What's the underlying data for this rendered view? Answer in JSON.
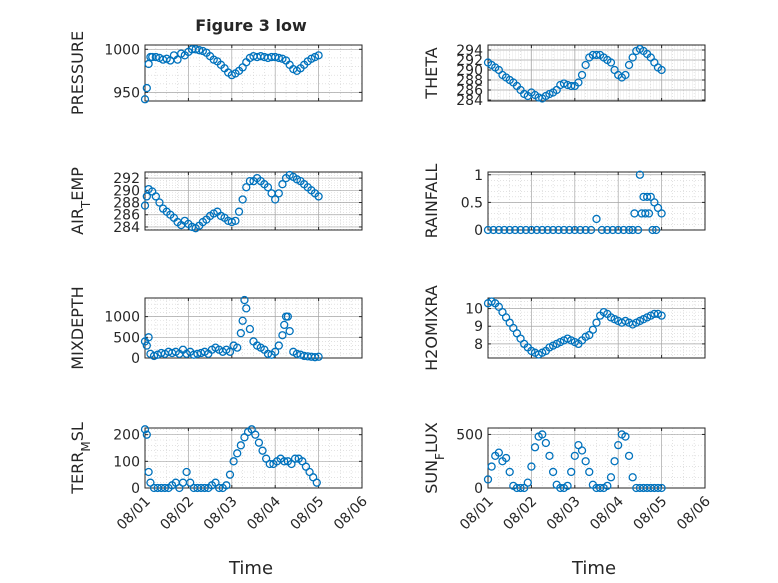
{
  "figure_title": "Figure 3 low",
  "colors": {
    "marker": "#0072BD",
    "axis": "#262626",
    "grid": "#a6a6a6",
    "frame": "#ffffff"
  },
  "chart_data": [
    {
      "type": "scatter",
      "ylabel": "PRESSURE",
      "title": "Figure 3 low",
      "ylim": [
        940,
        1005
      ],
      "yticks": [
        950,
        1000
      ],
      "grid": true,
      "x": [
        "2014-08-01 00:00",
        "2014-08-01 01:00",
        "2014-08-01 02:00",
        "2014-08-01 03:00",
        "2014-08-01 04:00",
        "2014-08-01 06:00",
        "2014-08-01 08:00",
        "2014-08-01 10:00",
        "2014-08-01 12:00",
        "2014-08-01 14:00",
        "2014-08-01 16:00",
        "2014-08-01 18:00",
        "2014-08-01 20:00",
        "2014-08-01 22:00",
        "2014-08-02 00:00",
        "2014-08-02 02:00",
        "2014-08-02 04:00",
        "2014-08-02 06:00",
        "2014-08-02 08:00",
        "2014-08-02 10:00",
        "2014-08-02 12:00",
        "2014-08-02 14:00",
        "2014-08-02 16:00",
        "2014-08-02 18:00",
        "2014-08-02 20:00",
        "2014-08-02 22:00",
        "2014-08-03 00:00",
        "2014-08-03 02:00",
        "2014-08-03 04:00",
        "2014-08-03 06:00",
        "2014-08-03 08:00",
        "2014-08-03 10:00",
        "2014-08-03 12:00",
        "2014-08-03 14:00",
        "2014-08-03 16:00",
        "2014-08-03 18:00",
        "2014-08-03 20:00",
        "2014-08-03 22:00",
        "2014-08-04 00:00",
        "2014-08-04 02:00",
        "2014-08-04 04:00",
        "2014-08-04 06:00",
        "2014-08-04 08:00",
        "2014-08-04 10:00",
        "2014-08-04 12:00",
        "2014-08-04 14:00",
        "2014-08-04 16:00",
        "2014-08-04 18:00",
        "2014-08-04 20:00",
        "2014-08-04 22:00",
        "2014-08-05 00:00"
      ],
      "y": [
        942,
        955,
        983,
        991,
        991,
        991,
        990,
        988,
        989,
        987,
        993,
        988,
        995,
        993,
        997,
        1000,
        1000,
        999,
        998,
        996,
        992,
        988,
        986,
        982,
        978,
        973,
        970,
        972,
        975,
        979,
        985,
        990,
        992,
        991,
        992,
        991,
        990,
        991,
        991,
        990,
        989,
        987,
        982,
        977,
        975,
        978,
        982,
        986,
        989,
        991,
        993
      ]
    },
    {
      "type": "scatter",
      "ylabel": "THETA",
      "ylim": [
        283.8,
        295
      ],
      "yticks": [
        284,
        286,
        288,
        290,
        292,
        294
      ],
      "grid": true,
      "x": [
        "2014-08-01 00:00",
        "2014-08-01 02:00",
        "2014-08-01 04:00",
        "2014-08-01 06:00",
        "2014-08-01 08:00",
        "2014-08-01 10:00",
        "2014-08-01 12:00",
        "2014-08-01 14:00",
        "2014-08-01 16:00",
        "2014-08-01 18:00",
        "2014-08-01 20:00",
        "2014-08-01 22:00",
        "2014-08-02 00:00",
        "2014-08-02 02:00",
        "2014-08-02 04:00",
        "2014-08-02 06:00",
        "2014-08-02 08:00",
        "2014-08-02 10:00",
        "2014-08-02 12:00",
        "2014-08-02 14:00",
        "2014-08-02 16:00",
        "2014-08-02 18:00",
        "2014-08-02 20:00",
        "2014-08-02 22:00",
        "2014-08-03 00:00",
        "2014-08-03 02:00",
        "2014-08-03 04:00",
        "2014-08-03 06:00",
        "2014-08-03 08:00",
        "2014-08-03 10:00",
        "2014-08-03 12:00",
        "2014-08-03 14:00",
        "2014-08-03 16:00",
        "2014-08-03 18:00",
        "2014-08-03 20:00",
        "2014-08-03 22:00",
        "2014-08-04 00:00",
        "2014-08-04 02:00",
        "2014-08-04 04:00",
        "2014-08-04 06:00",
        "2014-08-04 08:00",
        "2014-08-04 10:00",
        "2014-08-04 12:00",
        "2014-08-04 14:00",
        "2014-08-04 16:00",
        "2014-08-04 18:00",
        "2014-08-04 20:00",
        "2014-08-04 22:00",
        "2014-08-05 00:00"
      ],
      "y": [
        291.5,
        291,
        290.5,
        290,
        289,
        288.5,
        288,
        287.5,
        286.8,
        286,
        285.2,
        284.8,
        285.5,
        285,
        284.5,
        284.3,
        284.8,
        285.2,
        285.5,
        286,
        287,
        287.3,
        287,
        286.8,
        286.8,
        287.5,
        289,
        291,
        292.5,
        293,
        293,
        293,
        292.5,
        292,
        291.5,
        290,
        289,
        288.5,
        289,
        291,
        292.5,
        293.8,
        294.2,
        293.8,
        293.2,
        292.5,
        291.5,
        290.5,
        290
      ]
    },
    {
      "type": "scatter",
      "ylabel": "AIR_TEMP",
      "ylim": [
        283.5,
        293
      ],
      "yticks": [
        284,
        286,
        288,
        290,
        292
      ],
      "grid": true,
      "x": [
        "2014-08-01 00:00",
        "2014-08-01 01:00",
        "2014-08-01 02:00",
        "2014-08-01 04:00",
        "2014-08-01 06:00",
        "2014-08-01 08:00",
        "2014-08-01 10:00",
        "2014-08-01 12:00",
        "2014-08-01 14:00",
        "2014-08-01 16:00",
        "2014-08-01 18:00",
        "2014-08-01 20:00",
        "2014-08-01 22:00",
        "2014-08-02 00:00",
        "2014-08-02 02:00",
        "2014-08-02 04:00",
        "2014-08-02 06:00",
        "2014-08-02 08:00",
        "2014-08-02 10:00",
        "2014-08-02 12:00",
        "2014-08-02 14:00",
        "2014-08-02 16:00",
        "2014-08-02 18:00",
        "2014-08-02 20:00",
        "2014-08-02 22:00",
        "2014-08-03 00:00",
        "2014-08-03 02:00",
        "2014-08-03 04:00",
        "2014-08-03 06:00",
        "2014-08-03 08:00",
        "2014-08-03 10:00",
        "2014-08-03 12:00",
        "2014-08-03 14:00",
        "2014-08-03 16:00",
        "2014-08-03 18:00",
        "2014-08-03 20:00",
        "2014-08-03 22:00",
        "2014-08-04 00:00",
        "2014-08-04 02:00",
        "2014-08-04 04:00",
        "2014-08-04 06:00",
        "2014-08-04 08:00",
        "2014-08-04 10:00",
        "2014-08-04 12:00",
        "2014-08-04 14:00",
        "2014-08-04 16:00",
        "2014-08-04 18:00",
        "2014-08-04 20:00",
        "2014-08-04 22:00",
        "2014-08-05 00:00"
      ],
      "y": [
        287.5,
        289,
        290.2,
        289.8,
        289,
        288,
        287,
        286.5,
        286,
        285.5,
        284.8,
        284.3,
        285,
        284.5,
        284,
        283.8,
        284.2,
        284.8,
        285.2,
        285.8,
        286.2,
        286.5,
        285.8,
        285.5,
        285,
        284.8,
        285,
        286.5,
        288.5,
        290.5,
        291.5,
        291.5,
        292,
        291.5,
        291,
        290.5,
        289.5,
        288.5,
        289.5,
        291,
        292,
        292.5,
        292.2,
        291.8,
        291.5,
        291,
        290.5,
        290,
        289.5,
        289
      ]
    },
    {
      "type": "scatter",
      "ylabel": "RAINFALL",
      "ylim": [
        0,
        1.05
      ],
      "yticks": [
        0,
        0.5,
        1
      ],
      "ytick_labels": [
        "0",
        "0.5",
        "1"
      ],
      "grid": true,
      "x": [
        "2014-08-01 00:00",
        "2014-08-01 03:00",
        "2014-08-01 06:00",
        "2014-08-01 09:00",
        "2014-08-01 12:00",
        "2014-08-01 15:00",
        "2014-08-01 18:00",
        "2014-08-01 21:00",
        "2014-08-02 00:00",
        "2014-08-02 03:00",
        "2014-08-02 06:00",
        "2014-08-02 09:00",
        "2014-08-02 12:00",
        "2014-08-02 15:00",
        "2014-08-02 18:00",
        "2014-08-02 21:00",
        "2014-08-03 00:00",
        "2014-08-03 03:00",
        "2014-08-03 06:00",
        "2014-08-03 09:00",
        "2014-08-03 12:00",
        "2014-08-03 15:00",
        "2014-08-03 18:00",
        "2014-08-03 21:00",
        "2014-08-04 00:00",
        "2014-08-04 03:00",
        "2014-08-04 06:00",
        "2014-08-04 08:00",
        "2014-08-04 09:00",
        "2014-08-04 11:00",
        "2014-08-04 12:00",
        "2014-08-04 13:00",
        "2014-08-04 14:00",
        "2014-08-04 15:00",
        "2014-08-04 16:00",
        "2014-08-04 17:00",
        "2014-08-04 18:00",
        "2014-08-04 19:00",
        "2014-08-04 20:00",
        "2014-08-04 21:00",
        "2014-08-04 22:00",
        "2014-08-05 00:00"
      ],
      "y": [
        0,
        0,
        0,
        0,
        0,
        0,
        0,
        0,
        0,
        0,
        0,
        0,
        0,
        0,
        0,
        0,
        0,
        0,
        0,
        0,
        0.2,
        0,
        0,
        0,
        0,
        0,
        0,
        0,
        0.3,
        0,
        1,
        0.3,
        0.6,
        0.3,
        0.6,
        0.3,
        0.6,
        0,
        0.5,
        0,
        0.4,
        0.3
      ]
    },
    {
      "type": "scatter",
      "ylabel": "MIXDEPTH",
      "ylim": [
        0,
        1450
      ],
      "yticks": [
        0,
        500,
        1000
      ],
      "grid": true,
      "x": [
        "2014-08-01 00:00",
        "2014-08-01 01:00",
        "2014-08-01 02:00",
        "2014-08-01 03:00",
        "2014-08-01 05:00",
        "2014-08-01 07:00",
        "2014-08-01 09:00",
        "2014-08-01 11:00",
        "2014-08-01 13:00",
        "2014-08-01 15:00",
        "2014-08-01 17:00",
        "2014-08-01 19:00",
        "2014-08-01 21:00",
        "2014-08-01 23:00",
        "2014-08-02 01:00",
        "2014-08-02 03:00",
        "2014-08-02 05:00",
        "2014-08-02 07:00",
        "2014-08-02 09:00",
        "2014-08-02 11:00",
        "2014-08-02 13:00",
        "2014-08-02 15:00",
        "2014-08-02 17:00",
        "2014-08-02 19:00",
        "2014-08-02 21:00",
        "2014-08-02 23:00",
        "2014-08-03 01:00",
        "2014-08-03 03:00",
        "2014-08-03 05:00",
        "2014-08-03 06:00",
        "2014-08-03 07:00",
        "2014-08-03 08:00",
        "2014-08-03 10:00",
        "2014-08-03 12:00",
        "2014-08-03 14:00",
        "2014-08-03 16:00",
        "2014-08-03 18:00",
        "2014-08-03 20:00",
        "2014-08-03 22:00",
        "2014-08-04 00:00",
        "2014-08-04 02:00",
        "2014-08-04 04:00",
        "2014-08-04 05:00",
        "2014-08-04 06:00",
        "2014-08-04 07:00",
        "2014-08-04 08:00",
        "2014-08-04 10:00",
        "2014-08-04 12:00",
        "2014-08-04 14:00",
        "2014-08-04 16:00",
        "2014-08-04 18:00",
        "2014-08-04 20:00",
        "2014-08-04 22:00",
        "2014-08-05 00:00"
      ],
      "y": [
        400,
        300,
        500,
        100,
        50,
        80,
        120,
        100,
        150,
        120,
        150,
        100,
        200,
        100,
        150,
        80,
        100,
        120,
        150,
        100,
        200,
        250,
        200,
        150,
        200,
        150,
        300,
        250,
        600,
        900,
        1400,
        1200,
        700,
        400,
        300,
        250,
        200,
        100,
        80,
        150,
        300,
        550,
        800,
        1000,
        1000,
        650,
        150,
        100,
        80,
        50,
        40,
        30,
        20,
        30
      ]
    },
    {
      "type": "scatter",
      "ylabel": "H2OMIXRA",
      "ylim": [
        7.2,
        10.6
      ],
      "yticks": [
        8,
        9,
        10
      ],
      "grid": true,
      "x": [
        "2014-08-01 00:00",
        "2014-08-01 02:00",
        "2014-08-01 04:00",
        "2014-08-01 06:00",
        "2014-08-01 08:00",
        "2014-08-01 10:00",
        "2014-08-01 12:00",
        "2014-08-01 14:00",
        "2014-08-01 16:00",
        "2014-08-01 18:00",
        "2014-08-01 20:00",
        "2014-08-01 22:00",
        "2014-08-02 00:00",
        "2014-08-02 02:00",
        "2014-08-02 04:00",
        "2014-08-02 06:00",
        "2014-08-02 08:00",
        "2014-08-02 10:00",
        "2014-08-02 12:00",
        "2014-08-02 14:00",
        "2014-08-02 16:00",
        "2014-08-02 18:00",
        "2014-08-02 20:00",
        "2014-08-02 22:00",
        "2014-08-03 00:00",
        "2014-08-03 02:00",
        "2014-08-03 04:00",
        "2014-08-03 06:00",
        "2014-08-03 08:00",
        "2014-08-03 10:00",
        "2014-08-03 12:00",
        "2014-08-03 14:00",
        "2014-08-03 16:00",
        "2014-08-03 18:00",
        "2014-08-03 20:00",
        "2014-08-03 22:00",
        "2014-08-04 00:00",
        "2014-08-04 02:00",
        "2014-08-04 04:00",
        "2014-08-04 06:00",
        "2014-08-04 08:00",
        "2014-08-04 10:00",
        "2014-08-04 12:00",
        "2014-08-04 14:00",
        "2014-08-04 16:00",
        "2014-08-04 18:00",
        "2014-08-04 20:00",
        "2014-08-04 22:00",
        "2014-08-05 00:00"
      ],
      "y": [
        10.3,
        10.4,
        10.3,
        10.1,
        9.8,
        9.5,
        9.2,
        8.9,
        8.6,
        8.3,
        8,
        7.8,
        7.6,
        7.5,
        7.4,
        7.5,
        7.6,
        7.8,
        7.9,
        8,
        8.1,
        8.2,
        8.3,
        8.2,
        8.1,
        8,
        8.2,
        8.4,
        8.5,
        8.8,
        9.2,
        9.6,
        9.8,
        9.7,
        9.5,
        9.4,
        9.3,
        9.2,
        9.3,
        9.2,
        9.1,
        9.2,
        9.3,
        9.4,
        9.5,
        9.6,
        9.7,
        9.7,
        9.6
      ]
    },
    {
      "type": "scatter",
      "ylabel": "TERR_MSL",
      "ylim": [
        0,
        225
      ],
      "yticks": [
        0,
        100,
        200
      ],
      "grid": true,
      "x": [
        "2014-08-01 00:00",
        "2014-08-01 01:00",
        "2014-08-01 02:00",
        "2014-08-01 03:00",
        "2014-08-01 05:00",
        "2014-08-01 07:00",
        "2014-08-01 09:00",
        "2014-08-01 11:00",
        "2014-08-01 13:00",
        "2014-08-01 15:00",
        "2014-08-01 17:00",
        "2014-08-01 19:00",
        "2014-08-01 21:00",
        "2014-08-01 23:00",
        "2014-08-02 01:00",
        "2014-08-02 03:00",
        "2014-08-02 05:00",
        "2014-08-02 07:00",
        "2014-08-02 09:00",
        "2014-08-02 11:00",
        "2014-08-02 13:00",
        "2014-08-02 15:00",
        "2014-08-02 17:00",
        "2014-08-02 19:00",
        "2014-08-02 21:00",
        "2014-08-02 23:00",
        "2014-08-03 01:00",
        "2014-08-03 03:00",
        "2014-08-03 05:00",
        "2014-08-03 07:00",
        "2014-08-03 09:00",
        "2014-08-03 11:00",
        "2014-08-03 13:00",
        "2014-08-03 15:00",
        "2014-08-03 17:00",
        "2014-08-03 19:00",
        "2014-08-03 21:00",
        "2014-08-03 23:00",
        "2014-08-04 01:00",
        "2014-08-04 03:00",
        "2014-08-04 05:00",
        "2014-08-04 07:00",
        "2014-08-04 09:00",
        "2014-08-04 11:00",
        "2014-08-04 13:00",
        "2014-08-04 15:00",
        "2014-08-04 17:00",
        "2014-08-04 19:00",
        "2014-08-04 21:00",
        "2014-08-04 23:00"
      ],
      "y": [
        220,
        200,
        60,
        20,
        0,
        0,
        0,
        0,
        0,
        10,
        20,
        0,
        20,
        60,
        20,
        0,
        0,
        0,
        0,
        0,
        10,
        20,
        0,
        0,
        10,
        50,
        100,
        130,
        160,
        190,
        210,
        220,
        200,
        170,
        140,
        110,
        90,
        90,
        100,
        110,
        100,
        100,
        90,
        110,
        110,
        100,
        80,
        60,
        40,
        20
      ]
    },
    {
      "type": "scatter",
      "ylabel": "SUN_FLUX",
      "ylim": [
        0,
        560
      ],
      "yticks": [
        0,
        500
      ],
      "grid": true,
      "x": [
        "2014-08-01 00:00",
        "2014-08-01 02:00",
        "2014-08-01 04:00",
        "2014-08-01 06:00",
        "2014-08-01 08:00",
        "2014-08-01 10:00",
        "2014-08-01 12:00",
        "2014-08-01 14:00",
        "2014-08-01 16:00",
        "2014-08-01 18:00",
        "2014-08-01 20:00",
        "2014-08-01 22:00",
        "2014-08-02 00:00",
        "2014-08-02 02:00",
        "2014-08-02 04:00",
        "2014-08-02 06:00",
        "2014-08-02 08:00",
        "2014-08-02 10:00",
        "2014-08-02 12:00",
        "2014-08-02 14:00",
        "2014-08-02 16:00",
        "2014-08-02 18:00",
        "2014-08-02 20:00",
        "2014-08-02 22:00",
        "2014-08-03 00:00",
        "2014-08-03 02:00",
        "2014-08-03 04:00",
        "2014-08-03 06:00",
        "2014-08-03 08:00",
        "2014-08-03 10:00",
        "2014-08-03 12:00",
        "2014-08-03 14:00",
        "2014-08-03 16:00",
        "2014-08-03 18:00",
        "2014-08-03 20:00",
        "2014-08-03 22:00",
        "2014-08-04 00:00",
        "2014-08-04 02:00",
        "2014-08-04 04:00",
        "2014-08-04 06:00",
        "2014-08-04 08:00",
        "2014-08-04 10:00",
        "2014-08-04 12:00",
        "2014-08-04 14:00",
        "2014-08-04 16:00",
        "2014-08-04 18:00",
        "2014-08-04 20:00",
        "2014-08-04 22:00",
        "2014-08-05 00:00"
      ],
      "y": [
        80,
        200,
        300,
        330,
        250,
        280,
        150,
        20,
        0,
        0,
        0,
        50,
        200,
        380,
        480,
        500,
        420,
        300,
        150,
        30,
        0,
        0,
        20,
        150,
        300,
        400,
        350,
        250,
        150,
        30,
        0,
        0,
        0,
        20,
        100,
        250,
        400,
        500,
        480,
        300,
        100,
        0,
        0,
        0,
        0,
        0,
        0,
        0,
        0
      ]
    }
  ],
  "x_axis": {
    "xlim": [
      "2014-08-01 00:00",
      "2014-08-06 00:00"
    ],
    "tick_labels": [
      "08/01",
      "08/02",
      "08/03",
      "08/04",
      "08/05",
      "08/06"
    ],
    "xlabel": "Time"
  }
}
